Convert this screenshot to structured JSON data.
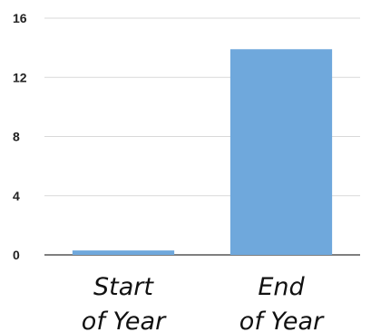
{
  "chart_data": {
    "type": "bar",
    "categories": [
      [
        "Start",
        "of Year"
      ],
      [
        "End",
        "of Year"
      ]
    ],
    "values": [
      0.3,
      13.9
    ],
    "ylim": [
      0,
      16
    ],
    "yticks": [
      "0",
      "4",
      "8",
      "12",
      "16"
    ],
    "grid": true,
    "legend": "none",
    "colors": {
      "bar": "#6fa8dc",
      "grid": "#d9d9d9",
      "baseline": "#333333"
    }
  }
}
